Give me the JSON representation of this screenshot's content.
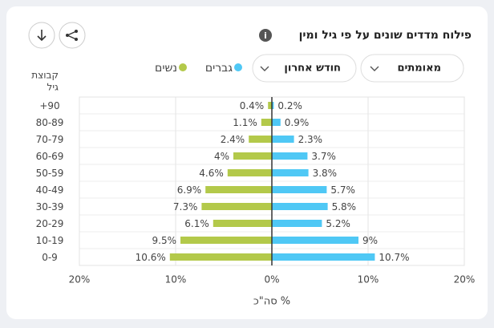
{
  "header": {
    "title": "פילוח מדדים שונים על פי גיל ומין"
  },
  "filters": [
    "מאומתים",
    "חודש אחרון"
  ],
  "chart_data": {
    "type": "pyramid",
    "y_label_lines": [
      "קבוצת",
      "גיל"
    ],
    "x_label": "% סה\"כ",
    "categories": [
      "+90",
      "80-89",
      "70-79",
      "60-69",
      "50-59",
      "40-49",
      "30-39",
      "20-29",
      "10-19",
      "0-9"
    ],
    "series": [
      {
        "name": "גברים",
        "color": "#4fc8f5",
        "side": "right",
        "values": [
          0.2,
          0.9,
          2.3,
          3.7,
          3.8,
          5.7,
          5.8,
          5.2,
          9,
          10.7
        ],
        "value_labels": [
          "0.2%",
          "0.9%",
          "2.3%",
          "3.7%",
          "3.8%",
          "5.7%",
          "5.8%",
          "5.2%",
          "9%",
          "10.7%"
        ]
      },
      {
        "name": "נשים",
        "color": "#b3c94a",
        "side": "left",
        "values": [
          0.4,
          1.1,
          2.4,
          4,
          4.6,
          6.9,
          7.3,
          6.1,
          9.5,
          10.6
        ],
        "value_labels": [
          "0.4%",
          "1.1%",
          "2.4%",
          "4%",
          "4.6%",
          "6.9%",
          "7.3%",
          "6.1%",
          "9.5%",
          "10.6%"
        ]
      }
    ],
    "xlim": [
      -20,
      20
    ],
    "xticks": [
      {
        "value": -20,
        "label": "20%"
      },
      {
        "value": -10,
        "label": "10%"
      },
      {
        "value": 0,
        "label": "0%"
      },
      {
        "value": 10,
        "label": "10%"
      },
      {
        "value": 20,
        "label": "20%"
      }
    ],
    "grid": true
  }
}
